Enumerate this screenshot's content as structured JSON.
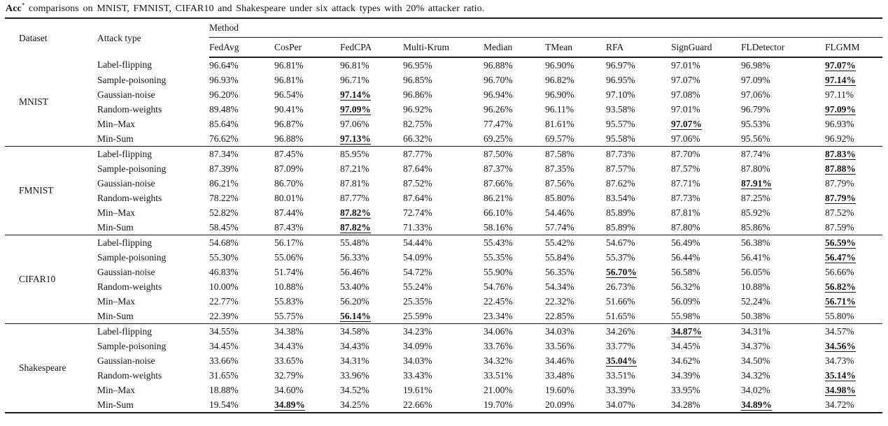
{
  "caption": {
    "acc": "Acc",
    "superscript": "*",
    "rest": " comparisons on MNIST, FMNIST, CIFAR10 and Shakespeare under six attack types with 20% attacker ratio."
  },
  "table": {
    "col1_header": "Dataset",
    "col2_header": "Attack type",
    "method_group_header": "Method",
    "methods": [
      "FedAvg",
      "CosPer",
      "FedCPA",
      "Multi-Krum",
      "Median",
      "TMean",
      "RFA",
      "SignGuard",
      "FLDetector",
      "FLGMM"
    ],
    "groups": [
      {
        "dataset": "MNIST",
        "rows": [
          {
            "attack": "Label-flipping",
            "values": [
              "96.64%",
              "96.81%",
              "96.81%",
              "96.95%",
              "96.88%",
              "96.90%",
              "96.97%",
              "97.01%",
              "96.98%",
              "97.07%"
            ],
            "highlight": [
              9
            ]
          },
          {
            "attack": "Sample-poisoning",
            "values": [
              "96.93%",
              "96.81%",
              "96.71%",
              "96.85%",
              "96.70%",
              "96.82%",
              "96.95%",
              "97.07%",
              "97.09%",
              "97.14%"
            ],
            "highlight": [
              9
            ]
          },
          {
            "attack": "Gaussian-noise",
            "values": [
              "96.20%",
              "96.54%",
              "97.14%",
              "96.86%",
              "96.94%",
              "96.90%",
              "97.10%",
              "97.08%",
              "97.06%",
              "97.11%"
            ],
            "highlight": [
              2
            ]
          },
          {
            "attack": "Random-weights",
            "values": [
              "89.48%",
              "90.41%",
              "97.09%",
              "96.92%",
              "96.26%",
              "96.11%",
              "93.58%",
              "97.01%",
              "96.79%",
              "97.09%"
            ],
            "highlight": [
              2,
              9
            ]
          },
          {
            "attack": "Min–Max",
            "values": [
              "85.64%",
              "96.87%",
              "97.06%",
              "82.75%",
              "77.47%",
              "81.61%",
              "95.57%",
              "97.07%",
              "95.53%",
              "96.93%"
            ],
            "highlight": [
              7
            ]
          },
          {
            "attack": "Min-Sum",
            "values": [
              "76.62%",
              "96.88%",
              "97.13%",
              "66.32%",
              "69.25%",
              "69.57%",
              "95.58%",
              "97.06%",
              "95.56%",
              "96.92%"
            ],
            "highlight": [
              2
            ]
          }
        ]
      },
      {
        "dataset": "FMNIST",
        "rows": [
          {
            "attack": "Label-flipping",
            "values": [
              "87.34%",
              "87.45%",
              "85.95%",
              "87.77%",
              "87.50%",
              "87.58%",
              "87.73%",
              "87.70%",
              "87.74%",
              "87.83%"
            ],
            "highlight": [
              9
            ]
          },
          {
            "attack": "Sample-poisoning",
            "values": [
              "87.39%",
              "87.09%",
              "87.21%",
              "87.64%",
              "87.37%",
              "87.35%",
              "87.57%",
              "87.57%",
              "87.80%",
              "87.88%"
            ],
            "highlight": [
              9
            ]
          },
          {
            "attack": "Gaussian-noise",
            "values": [
              "86.21%",
              "86.70%",
              "87.81%",
              "87.52%",
              "87.66%",
              "87.56%",
              "87.62%",
              "87.71%",
              "87.91%",
              "87.79%"
            ],
            "highlight": [
              8
            ]
          },
          {
            "attack": "Random-weights",
            "values": [
              "78.22%",
              "80.01%",
              "87.77%",
              "87.64%",
              "86.21%",
              "85.80%",
              "83.54%",
              "87.73%",
              "87.25%",
              "87.79%"
            ],
            "highlight": [
              9
            ]
          },
          {
            "attack": "Min–Max",
            "values": [
              "52.82%",
              "87.44%",
              "87.82%",
              "72.74%",
              "66.10%",
              "54.46%",
              "85.89%",
              "87.81%",
              "85.92%",
              "87.52%"
            ],
            "highlight": [
              2
            ]
          },
          {
            "attack": "Min-Sum",
            "values": [
              "58.45%",
              "87.43%",
              "87.82%",
              "71.33%",
              "58.16%",
              "57.74%",
              "85.89%",
              "87.80%",
              "85.86%",
              "87.59%"
            ],
            "highlight": [
              2
            ]
          }
        ]
      },
      {
        "dataset": "CIFAR10",
        "rows": [
          {
            "attack": "Label-flipping",
            "values": [
              "54.68%",
              "56.17%",
              "55.48%",
              "54.44%",
              "55.43%",
              "55.42%",
              "54.67%",
              "56.49%",
              "56.38%",
              "56.59%"
            ],
            "highlight": [
              9
            ]
          },
          {
            "attack": "Sample-poisoning",
            "values": [
              "55.30%",
              "55.06%",
              "56.33%",
              "54.09%",
              "55.35%",
              "55.84%",
              "55.37%",
              "56.44%",
              "56.41%",
              "56.47%"
            ],
            "highlight": [
              9
            ]
          },
          {
            "attack": "Gaussian-noise",
            "values": [
              "46.83%",
              "51.74%",
              "56.46%",
              "54.72%",
              "55.90%",
              "56.35%",
              "56.70%",
              "56.58%",
              "56.05%",
              "56.66%"
            ],
            "highlight": [
              6
            ]
          },
          {
            "attack": "Random-weights",
            "values": [
              "10.00%",
              "10.88%",
              "53.40%",
              "55.24%",
              "54.76%",
              "54.34%",
              "26.73%",
              "56.32%",
              "10.88%",
              "56.82%"
            ],
            "highlight": [
              9
            ]
          },
          {
            "attack": "Min–Max",
            "values": [
              "22.77%",
              "55.83%",
              "56.20%",
              "25.35%",
              "22.45%",
              "22.32%",
              "51.66%",
              "56.09%",
              "52.24%",
              "56.71%"
            ],
            "highlight": [
              9
            ]
          },
          {
            "attack": "Min-Sum",
            "values": [
              "22.39%",
              "55.75%",
              "56.14%",
              "25.59%",
              "23.34%",
              "22.85%",
              "51.65%",
              "55.98%",
              "50.38%",
              "55.80%"
            ],
            "highlight": [
              2
            ]
          }
        ]
      },
      {
        "dataset": "Shakespeare",
        "rows": [
          {
            "attack": "Label-flipping",
            "values": [
              "34.55%",
              "34.38%",
              "34.58%",
              "34.23%",
              "34.06%",
              "34.03%",
              "34.26%",
              "34.87%",
              "34.31%",
              "34.57%"
            ],
            "highlight": [
              7
            ]
          },
          {
            "attack": "Sample-poisoning",
            "values": [
              "34.45%",
              "34.43%",
              "34.43%",
              "34.09%",
              "33.76%",
              "33.56%",
              "33.77%",
              "34.45%",
              "34.37%",
              "34.56%"
            ],
            "highlight": [
              9
            ]
          },
          {
            "attack": "Gaussian-noise",
            "values": [
              "33.66%",
              "33.65%",
              "34.31%",
              "34.03%",
              "34.32%",
              "34.46%",
              "35.04%",
              "34.62%",
              "34.50%",
              "34.73%"
            ],
            "highlight": [
              6
            ]
          },
          {
            "attack": "Random-weights",
            "values": [
              "31.65%",
              "32.79%",
              "33.96%",
              "33.43%",
              "33.51%",
              "33.48%",
              "33.51%",
              "34.39%",
              "34.32%",
              "35.14%"
            ],
            "highlight": [
              9
            ]
          },
          {
            "attack": "Min–Max",
            "values": [
              "18.88%",
              "34.60%",
              "34.52%",
              "19.61%",
              "21.00%",
              "19.60%",
              "33.39%",
              "33.95%",
              "34.02%",
              "34.98%"
            ],
            "highlight": [
              9
            ]
          },
          {
            "attack": "Min-Sum",
            "values": [
              "19.54%",
              "34.89%",
              "34.25%",
              "22.66%",
              "19.70%",
              "20.09%",
              "34.07%",
              "34.28%",
              "34.89%",
              "34.72%"
            ],
            "highlight": [
              1,
              8
            ]
          }
        ]
      }
    ]
  }
}
